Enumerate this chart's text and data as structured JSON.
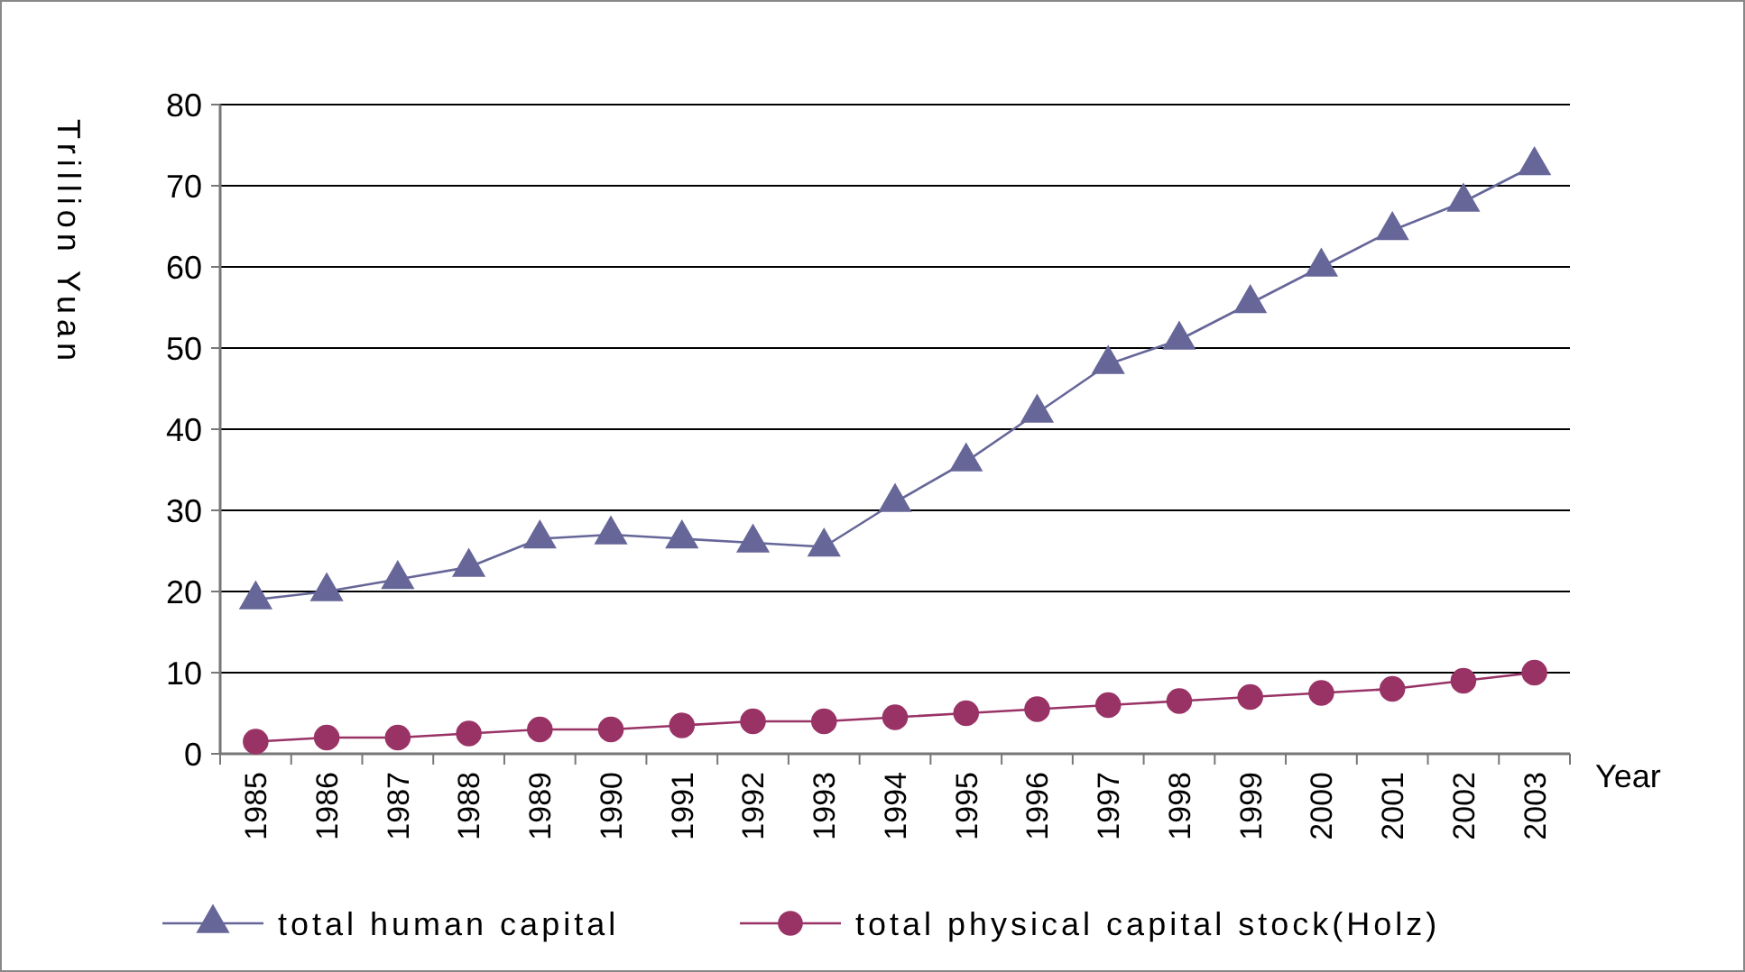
{
  "chart_data": {
    "type": "line",
    "xlabel": "Year",
    "ylabel": "Trillion Yuan",
    "categories": [
      "1985",
      "1986",
      "1987",
      "1988",
      "1989",
      "1990",
      "1991",
      "1992",
      "1993",
      "1994",
      "1995",
      "1996",
      "1997",
      "1998",
      "1999",
      "2000",
      "2001",
      "2002",
      "2003"
    ],
    "series": [
      {
        "name": "total human capital",
        "color": "#666699",
        "marker": "triangle",
        "values": [
          19,
          20,
          21.5,
          23,
          26.5,
          27,
          26.5,
          26,
          25.5,
          31,
          36,
          42,
          48,
          51,
          55.5,
          60,
          64.5,
          68,
          72.5
        ]
      },
      {
        "name": "total physical capital stock(Holz)",
        "color": "#993366",
        "marker": "circle",
        "values": [
          1.5,
          2,
          2,
          2.5,
          3,
          3,
          3.5,
          4,
          4,
          4.5,
          5,
          5.5,
          6,
          6.5,
          7,
          7.5,
          8,
          9,
          10
        ]
      }
    ],
    "ylim": [
      0,
      80
    ],
    "yticks": [
      0,
      10,
      20,
      30,
      40,
      50,
      60,
      70,
      80
    ],
    "grid": "y",
    "legend": "bottom",
    "line_style": "solid"
  }
}
